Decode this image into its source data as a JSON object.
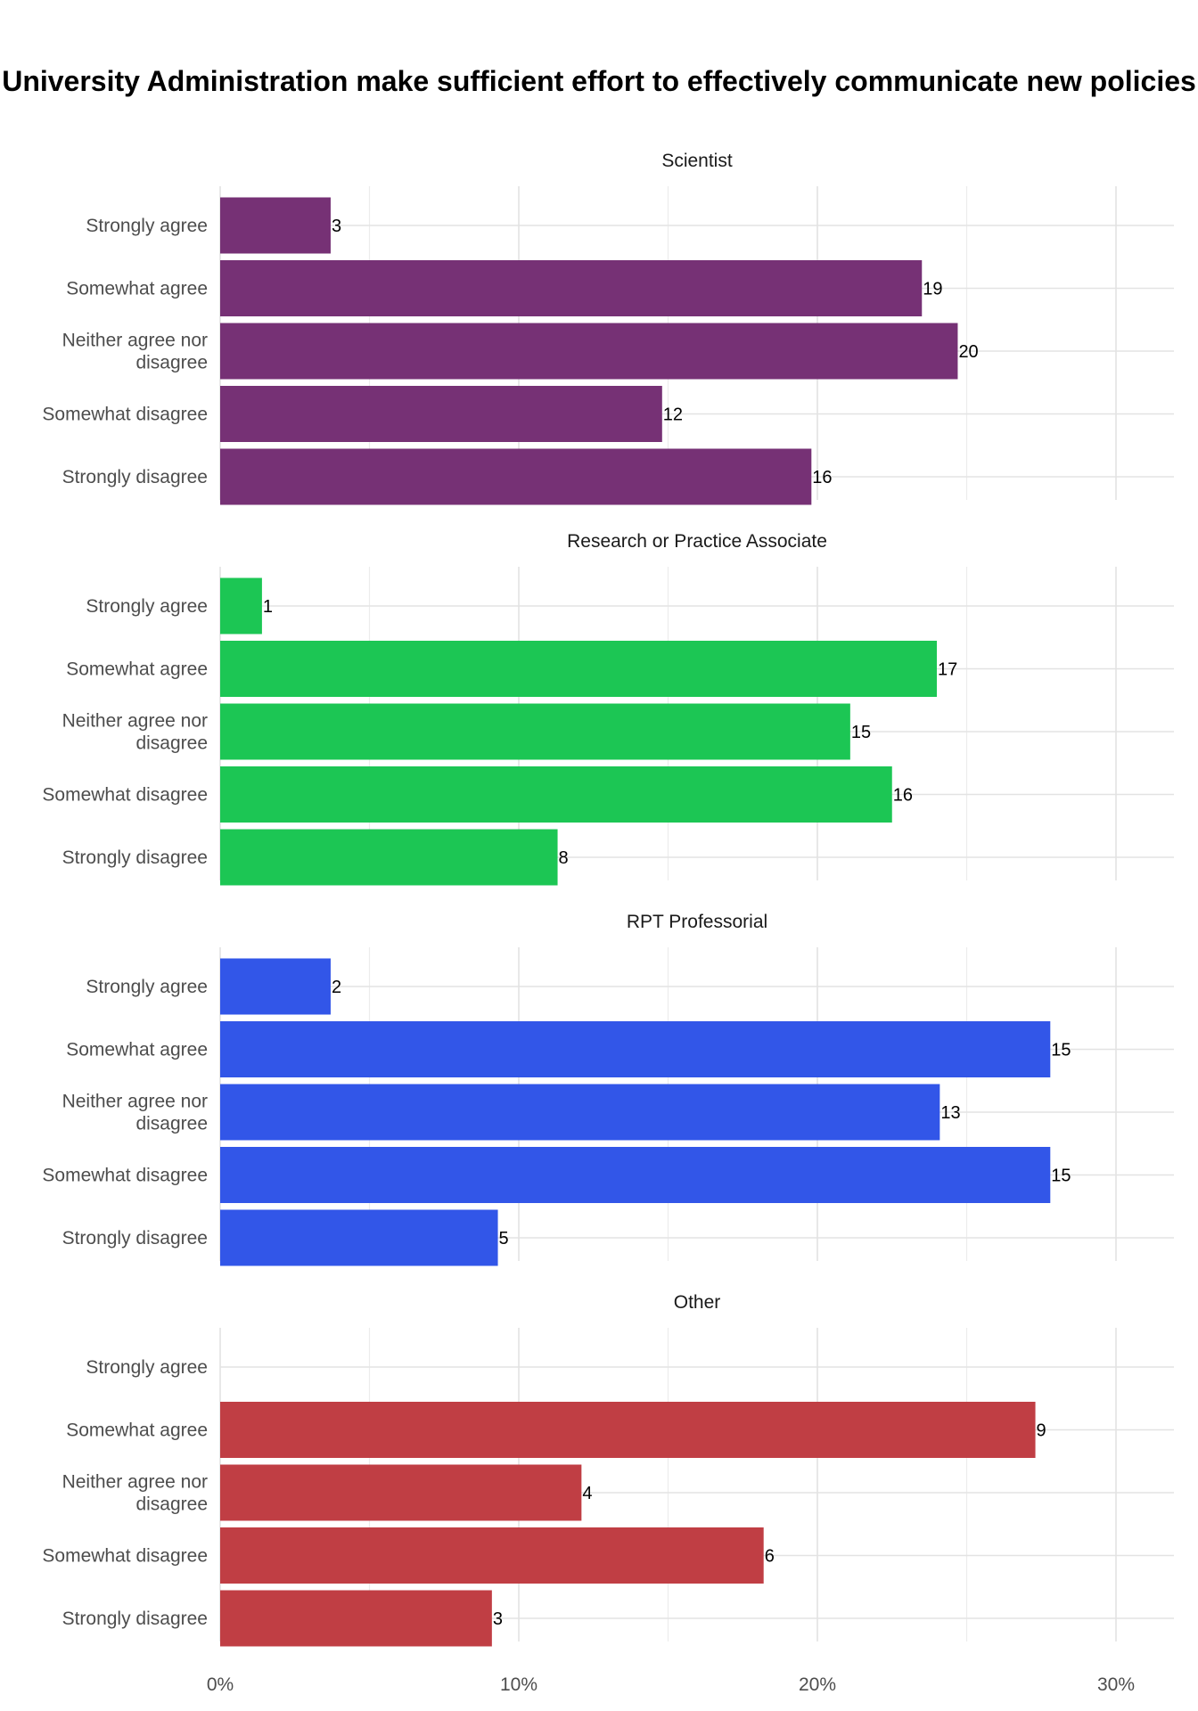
{
  "chart_data": {
    "type": "bar",
    "orientation": "horizontal",
    "title": "University Administration make sufficient effort to effectively communicate new policies",
    "categories": [
      "Strongly agree",
      "Somewhat agree",
      "Neither agree nor disagree",
      "Somewhat disagree",
      "Strongly disagree"
    ],
    "category_lines": [
      [
        "Strongly agree"
      ],
      [
        "Somewhat agree"
      ],
      [
        "Neither agree nor",
        "disagree"
      ],
      [
        "Somewhat disagree"
      ],
      [
        "Strongly disagree"
      ]
    ],
    "value_unit": "percent of respondents in group",
    "xlim": [
      0,
      32
    ],
    "x_ticks": [
      0,
      10,
      20,
      30
    ],
    "x_tick_labels": [
      "0%",
      "10%",
      "20%",
      "30%"
    ],
    "grid": true,
    "panels": [
      {
        "name": "Scientist",
        "color": "#763175",
        "percents": [
          3.7,
          23.5,
          24.7,
          14.8,
          19.8
        ],
        "counts": [
          "3",
          "19",
          "20",
          "12",
          "16"
        ]
      },
      {
        "name": "Research or Practice Associate",
        "color": "#1CC654",
        "percents": [
          1.4,
          24.0,
          21.1,
          22.5,
          11.3
        ],
        "counts": [
          "1",
          "17",
          "15",
          "16",
          "8"
        ]
      },
      {
        "name": "RPT Professorial",
        "color": "#3256E8",
        "percents": [
          3.7,
          27.8,
          24.1,
          27.8,
          9.3
        ],
        "counts": [
          "2",
          "15",
          "13",
          "15",
          "5"
        ]
      },
      {
        "name": "Other",
        "color": "#C03E44",
        "percents": [
          null,
          27.3,
          12.1,
          18.2,
          9.1
        ],
        "counts": [
          null,
          "9",
          "4",
          "6",
          "3"
        ]
      }
    ]
  }
}
